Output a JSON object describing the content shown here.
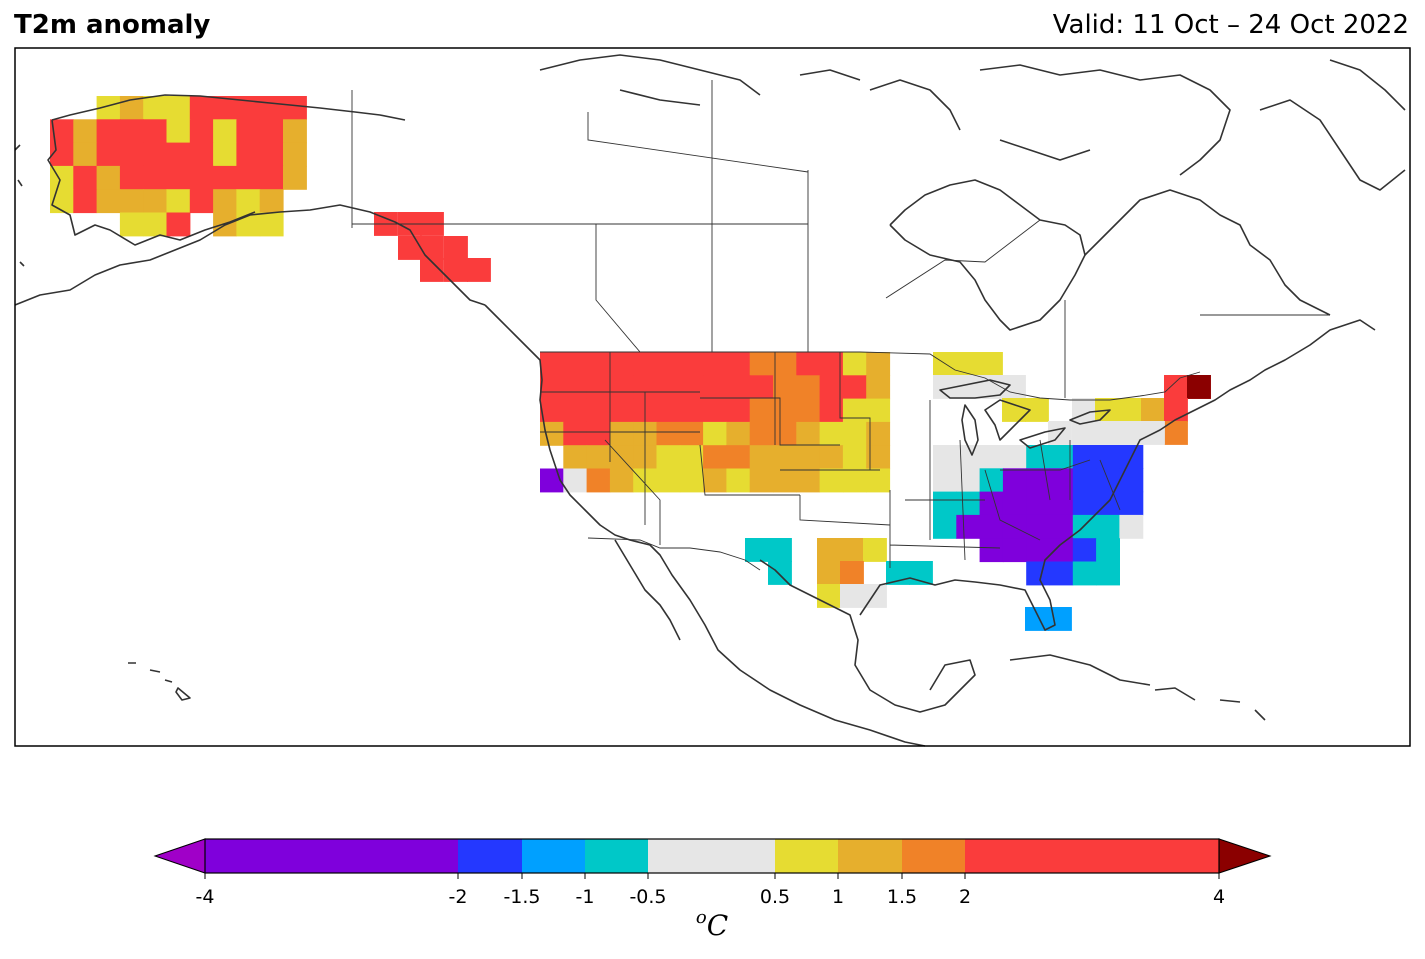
{
  "header": {
    "title": "T2m anomaly",
    "valid": "Valid: 11 Oct – 24 Oct 2022"
  },
  "colorbar": {
    "unit": "oC",
    "ticks": [
      "-4",
      "-2",
      "-1.5",
      "-1",
      "-0.5",
      "0.5",
      "1",
      "1.5",
      "2",
      "4"
    ],
    "bins": [
      {
        "from": -4,
        "to": -2,
        "color": "#7f00dc"
      },
      {
        "from": -2,
        "to": -1.5,
        "color": "#2438ff"
      },
      {
        "from": -1.5,
        "to": -1,
        "color": "#00a0ff"
      },
      {
        "from": -1,
        "to": -0.5,
        "color": "#00c8c8"
      },
      {
        "from": -0.5,
        "to": 0.5,
        "color": "#e6e6e6"
      },
      {
        "from": 0.5,
        "to": 1,
        "color": "#e6dc32"
      },
      {
        "from": 1,
        "to": 1.5,
        "color": "#e6af2d"
      },
      {
        "from": 1.5,
        "to": 2,
        "color": "#f08228"
      },
      {
        "from": 2,
        "to": 4,
        "color": "#fa3c3c"
      }
    ],
    "under_color": "#a000c8",
    "over_color": "#8b0000"
  },
  "map_colors": {
    "coast": "#333333",
    "border": "#333333",
    "frame": "#000000"
  },
  "regions": [
    {
      "name": "alaska",
      "cells": [
        "..ygyyrrrrr",
        "rgrrryryrrg",
        "rgrrrrryrrg",
        "yrgrrrrrrrg",
        "yrgggyrgyg.",
        "...yyr.gyy."
      ]
    },
    {
      "name": "west-us",
      "cells": [
        "rrrrrrrrroorryg",
        "rrrrrrrrrroorrg",
        "rrrrrrrrroooryy",
        "grrggooygoogyyg",
        ".ggggyyooggggyg",
        "vwogyyygygggyyy"
      ]
    },
    {
      "name": "southeast-us",
      "cells": [
        "wwwwccbbb",
        "wwcvvvbbb",
        "ccvvvvbbb",
        "cvvvvvccw",
        "..vvvvbc.",
        "....bbcc."
      ]
    }
  ]
}
